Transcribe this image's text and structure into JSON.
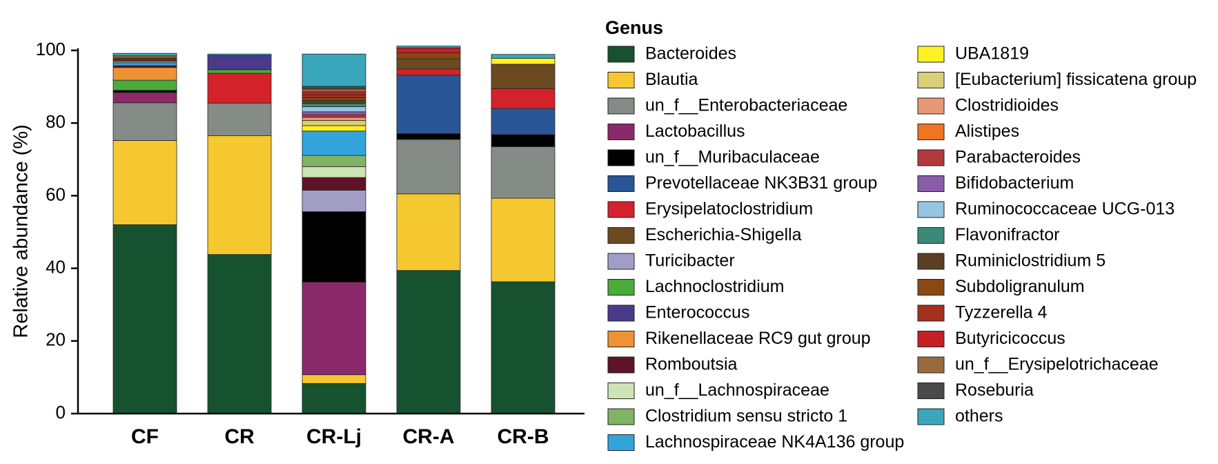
{
  "chart_data": {
    "type": "bar",
    "stacked": true,
    "ylabel": "Relative abundance (%)",
    "ylim": [
      0,
      100
    ],
    "yticks": [
      "0",
      "20",
      "40",
      "60",
      "80",
      "100"
    ],
    "categories": [
      "CF",
      "CR",
      "CR-Lj",
      "CR-A",
      "CR-B"
    ],
    "legend_title": "Genus",
    "legend_placement": "right",
    "grid": false,
    "series": [
      {
        "name": "Bacteroides",
        "color": "#165230",
        "values": [
          52.0,
          43.8,
          8.3,
          39.4,
          36.3
        ]
      },
      {
        "name": "Blautia",
        "color": "#f5c830",
        "values": [
          23.2,
          32.7,
          2.4,
          21.1,
          23.0
        ]
      },
      {
        "name": "un_f__Enterobacteriaceae",
        "color": "#858b86",
        "values": [
          10.4,
          9.0,
          0.0,
          15.0,
          14.2
        ]
      },
      {
        "name": "Lactobacillus",
        "color": "#8b2a6b",
        "values": [
          2.8,
          0.0,
          25.5,
          0.0,
          0.0
        ]
      },
      {
        "name": "un_f__Muribaculaceae",
        "color": "#000000",
        "values": [
          0.6,
          0.0,
          19.4,
          1.6,
          3.3
        ]
      },
      {
        "name": "Prevotellaceae NK3B31 group",
        "color": "#2a5597",
        "values": [
          0.0,
          0.0,
          0.0,
          16.1,
          7.2
        ]
      },
      {
        "name": "Erysipelatoclostridium",
        "color": "#d4222a",
        "values": [
          0.0,
          8.2,
          0.0,
          1.7,
          5.5
        ]
      },
      {
        "name": "Escherichia-Shigella",
        "color": "#6b4a22",
        "values": [
          0.0,
          0.0,
          0.0,
          2.8,
          6.7
        ]
      },
      {
        "name": "Turicibacter",
        "color": "#a19ec6",
        "values": [
          0.0,
          0.0,
          5.9,
          0.0,
          0.0
        ]
      },
      {
        "name": "Lachnoclostridium",
        "color": "#4aab3a",
        "values": [
          2.8,
          1.0,
          0.0,
          0.0,
          0.0
        ]
      },
      {
        "name": "Enterococcus",
        "color": "#4b3a8a",
        "values": [
          0.0,
          3.9,
          0.0,
          0.0,
          0.0
        ]
      },
      {
        "name": "Rikenellaceae RC9 gut group",
        "color": "#ee9234",
        "values": [
          3.5,
          0.0,
          0.0,
          0.0,
          0.0
        ]
      },
      {
        "name": "Romboutsia",
        "color": "#5e1426",
        "values": [
          0.5,
          0.0,
          3.5,
          0.0,
          0.0
        ]
      },
      {
        "name": "un_f__Lachnospiraceae",
        "color": "#cfe4b6",
        "values": [
          0.0,
          0.0,
          3.0,
          0.0,
          0.0
        ]
      },
      {
        "name": "Clostridium sensu stricto 1",
        "color": "#7fb366",
        "values": [
          0.0,
          0.0,
          3.1,
          0.0,
          0.0
        ]
      },
      {
        "name": "Lachnospiraceae NK4A136 group",
        "color": "#31a4dc",
        "values": [
          0.8,
          0.0,
          6.7,
          0.0,
          0.0
        ]
      },
      {
        "name": "UBA1819",
        "color": "#fff123",
        "values": [
          0.0,
          0.0,
          1.5,
          0.0,
          1.6
        ]
      },
      {
        "name": "[Eubacterium] fissicatena group",
        "color": "#d8cf78",
        "values": [
          0.0,
          0.0,
          1.4,
          0.0,
          0.0
        ]
      },
      {
        "name": "Clostridioides",
        "color": "#e89874",
        "values": [
          0.0,
          0.0,
          0.9,
          0.0,
          0.0
        ]
      },
      {
        "name": "Alistipes",
        "color": "#f07422",
        "values": [
          0.0,
          0.0,
          0.0,
          0.0,
          0.0
        ]
      },
      {
        "name": "Parabacteroides",
        "color": "#b13a3f",
        "values": [
          0.0,
          0.0,
          0.7,
          0.0,
          0.0
        ]
      },
      {
        "name": "Bifidobacterium",
        "color": "#8a5da8",
        "values": [
          0.0,
          0.0,
          0.8,
          0.0,
          0.0
        ]
      },
      {
        "name": "Ruminococcaceae UCG-013",
        "color": "#97c4e0",
        "values": [
          0.4,
          0.0,
          1.4,
          0.0,
          0.0
        ]
      },
      {
        "name": "Flavonifractor",
        "color": "#3b8a78",
        "values": [
          0.0,
          0.0,
          0.9,
          0.0,
          0.0
        ]
      },
      {
        "name": "Ruminiclostridium 5",
        "color": "#5a3f24",
        "values": [
          0.6,
          0.0,
          0.8,
          0.0,
          0.0
        ]
      },
      {
        "name": "Subdoligranulum",
        "color": "#8a4815",
        "values": [
          0.3,
          0.0,
          0.8,
          1.6,
          0.0
        ]
      },
      {
        "name": "Tyzzerella 4",
        "color": "#a3311f",
        "values": [
          0.0,
          0.0,
          0.8,
          0.0,
          0.0
        ]
      },
      {
        "name": "Butyricicoccus",
        "color": "#c42026",
        "values": [
          0.0,
          0.0,
          0.8,
          1.4,
          0.0
        ]
      },
      {
        "name": "un_f__Erysipelotrichaceae",
        "color": "#9a6a3f",
        "values": [
          0.6,
          0.0,
          0.8,
          0.0,
          0.0
        ]
      },
      {
        "name": "Roseburia",
        "color": "#4a4a4a",
        "values": [
          0.0,
          0.0,
          0.7,
          0.0,
          0.0
        ]
      },
      {
        "name": "others",
        "color": "#3aa6bc",
        "values": [
          0.7,
          0.4,
          8.9,
          0.5,
          1.1
        ]
      }
    ]
  }
}
